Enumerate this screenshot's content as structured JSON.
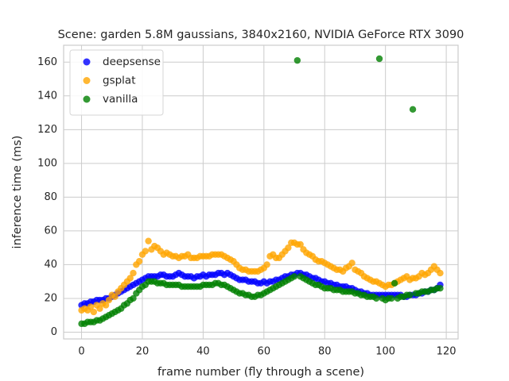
{
  "chart_data": {
    "type": "scatter",
    "title": "Scene: garden 5.8M gaussians, 3840x2160, NVIDIA GeForce RTX 3090",
    "xlabel": "frame number (fly through a scene)",
    "ylabel": "inference time (ms)",
    "xlim": [
      -5.9,
      123.9
    ],
    "ylim": [
      -4,
      170
    ],
    "xticks": [
      0,
      20,
      40,
      60,
      80,
      100,
      120
    ],
    "yticks": [
      0,
      20,
      40,
      60,
      80,
      100,
      120,
      140,
      160
    ],
    "grid": true,
    "legend": "upper left",
    "x": [
      0,
      1,
      2,
      3,
      4,
      5,
      6,
      7,
      8,
      9,
      10,
      11,
      12,
      13,
      14,
      15,
      16,
      17,
      18,
      19,
      20,
      21,
      22,
      23,
      24,
      25,
      26,
      27,
      28,
      29,
      30,
      31,
      32,
      33,
      34,
      35,
      36,
      37,
      38,
      39,
      40,
      41,
      42,
      43,
      44,
      45,
      46,
      47,
      48,
      49,
      50,
      51,
      52,
      53,
      54,
      55,
      56,
      57,
      58,
      59,
      60,
      61,
      62,
      63,
      64,
      65,
      66,
      67,
      68,
      69,
      70,
      71,
      72,
      73,
      74,
      75,
      76,
      77,
      78,
      79,
      80,
      81,
      82,
      83,
      84,
      85,
      86,
      87,
      88,
      89,
      90,
      91,
      92,
      93,
      94,
      95,
      96,
      97,
      98,
      99,
      100,
      101,
      102,
      103,
      104,
      105,
      106,
      107,
      108,
      109,
      110,
      111,
      112,
      113,
      114,
      115,
      116,
      117,
      118
    ],
    "series": [
      {
        "name": "deepsense",
        "color": "#0000ff",
        "values": [
          16,
          17,
          17,
          18,
          18,
          19,
          19,
          19,
          20,
          20,
          21,
          22,
          23,
          24,
          25,
          26,
          27,
          28,
          29,
          30,
          31,
          32,
          33,
          33,
          33,
          33,
          34,
          34,
          33,
          33,
          33,
          34,
          35,
          34,
          33,
          33,
          33,
          32,
          33,
          33,
          34,
          33,
          34,
          34,
          34,
          35,
          35,
          34,
          35,
          34,
          33,
          32,
          31,
          31,
          31,
          30,
          30,
          30,
          29,
          29,
          30,
          29,
          30,
          30,
          31,
          31,
          32,
          33,
          33,
          34,
          34,
          35,
          35,
          34,
          34,
          33,
          32,
          32,
          31,
          30,
          30,
          29,
          29,
          28,
          28,
          27,
          27,
          27,
          26,
          26,
          25,
          24,
          24,
          23,
          23,
          22,
          22,
          22,
          22,
          22,
          22,
          22,
          22,
          22,
          22,
          22,
          21,
          21,
          22,
          22,
          22,
          23,
          23,
          24,
          24,
          25,
          25,
          26,
          28
        ]
      },
      {
        "name": "gsplat",
        "color": "#ffa500",
        "values": [
          13,
          14,
          13,
          15,
          12,
          16,
          14,
          17,
          16,
          19,
          22,
          21,
          24,
          26,
          28,
          30,
          32,
          35,
          40,
          42,
          46,
          48,
          54,
          49,
          51,
          50,
          48,
          46,
          47,
          46,
          45,
          45,
          44,
          45,
          45,
          46,
          44,
          44,
          44,
          45,
          45,
          45,
          45,
          46,
          46,
          46,
          46,
          45,
          44,
          43,
          42,
          40,
          38,
          37,
          37,
          36,
          36,
          36,
          36,
          37,
          38,
          40,
          45,
          46,
          44,
          44,
          46,
          48,
          50,
          53,
          53,
          52,
          52,
          49,
          47,
          46,
          45,
          43,
          42,
          42,
          41,
          40,
          39,
          38,
          37,
          37,
          36,
          38,
          39,
          41,
          37,
          36,
          35,
          33,
          32,
          31,
          30,
          30,
          29,
          28,
          27,
          28,
          28,
          29,
          30,
          31,
          32,
          33,
          31,
          32,
          32,
          33,
          35,
          34,
          35,
          37,
          39,
          37,
          35
        ]
      },
      {
        "name": "vanilla",
        "color": "#008000",
        "values": [
          5,
          5,
          6,
          6,
          6,
          7,
          7,
          8,
          9,
          10,
          11,
          12,
          13,
          14,
          16,
          17,
          19,
          20,
          23,
          25,
          27,
          28,
          30,
          30,
          30,
          29,
          29,
          29,
          28,
          28,
          28,
          28,
          28,
          27,
          27,
          27,
          27,
          27,
          27,
          27,
          28,
          28,
          28,
          28,
          29,
          29,
          28,
          28,
          27,
          26,
          25,
          24,
          23,
          23,
          22,
          22,
          21,
          21,
          22,
          22,
          23,
          24,
          25,
          26,
          27,
          28,
          29,
          30,
          31,
          32,
          33,
          161,
          33,
          32,
          31,
          30,
          29,
          28,
          28,
          27,
          26,
          26,
          26,
          25,
          25,
          25,
          24,
          24,
          24,
          24,
          23,
          23,
          22,
          22,
          21,
          21,
          21,
          20,
          162,
          20,
          19,
          20,
          20,
          29,
          20,
          21,
          21,
          22,
          22,
          132,
          23,
          23,
          24,
          24,
          24,
          25,
          25,
          26,
          26
        ]
      }
    ]
  }
}
